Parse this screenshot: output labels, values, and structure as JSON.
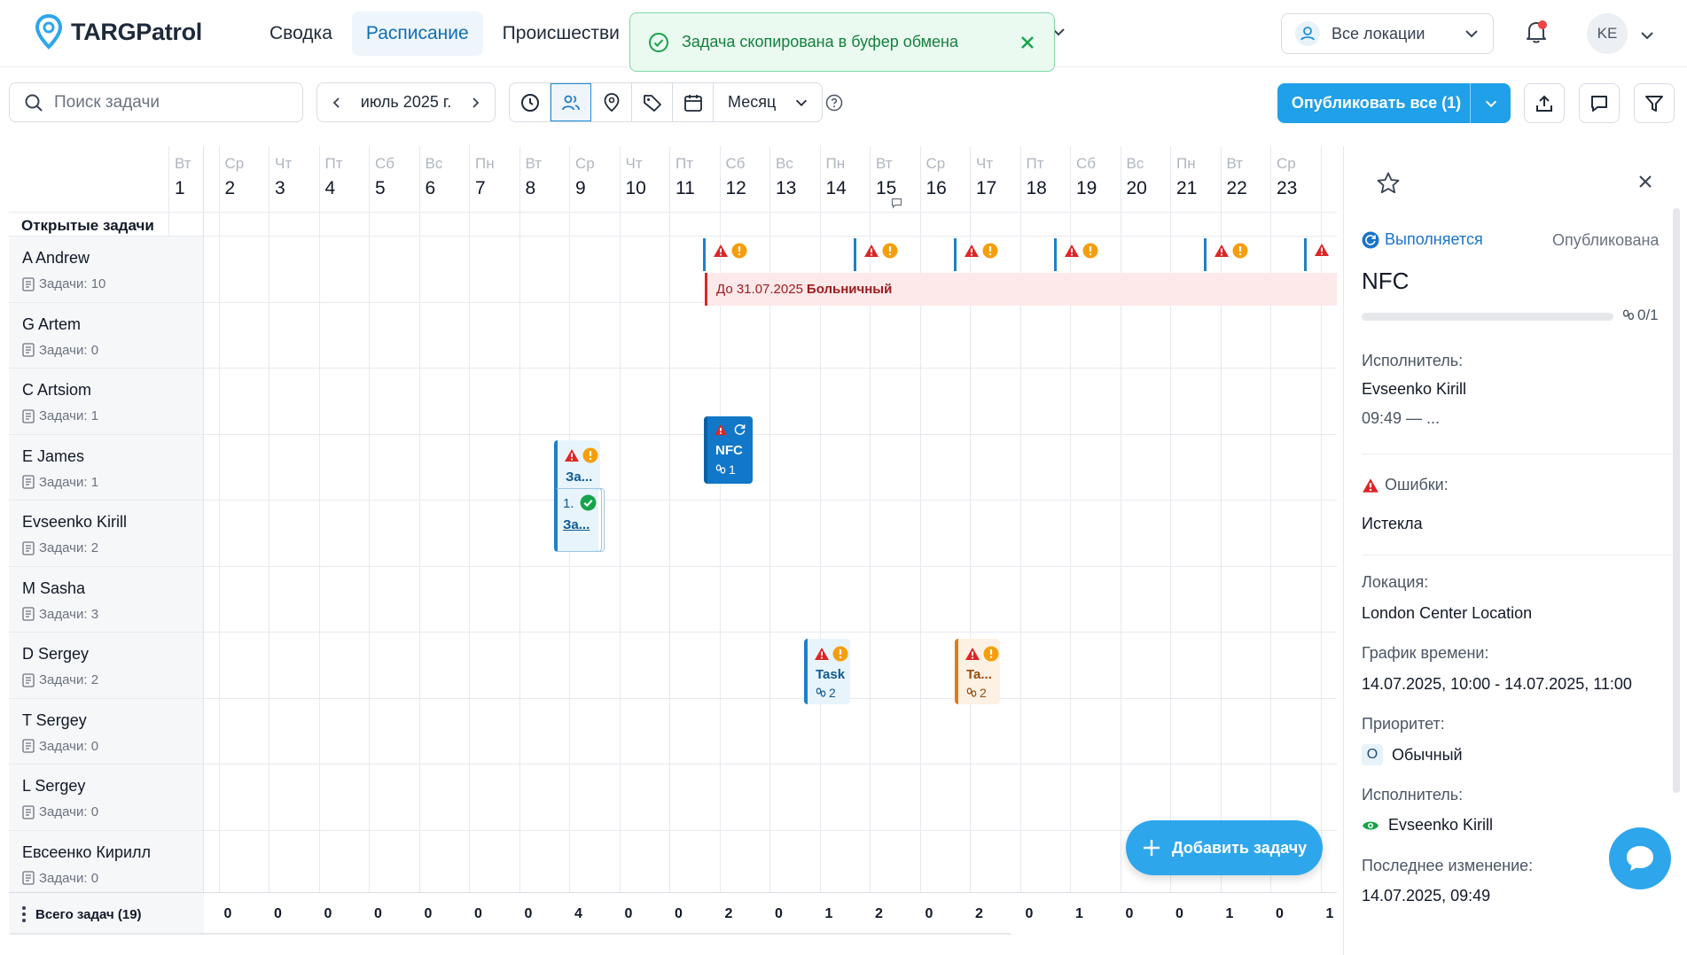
{
  "header": {
    "logo_text": "TARGPatrol",
    "nav": [
      "Сводка",
      "Расписание",
      "Происшестви"
    ],
    "toast_text": "Задача скопирована в буфер обмена",
    "location_select": "Все локации",
    "avatar_initials": "KE"
  },
  "toolbar": {
    "search_placeholder": "Поиск задачи",
    "date_label": "июль 2025 г.",
    "view_mode": "Месяц",
    "publish_label": "Опубликовать все (1)"
  },
  "colors": {
    "accent": "#1fa0e8",
    "danger": "#dc2626",
    "warning": "#f59e0b",
    "success": "#16a34a"
  },
  "schedule": {
    "open_tasks_label": "Открытые задачи",
    "days": [
      {
        "dow": "Вт",
        "num": "1"
      },
      {
        "dow": "Ср",
        "num": "2"
      },
      {
        "dow": "Чт",
        "num": "3"
      },
      {
        "dow": "Пт",
        "num": "4"
      },
      {
        "dow": "Сб",
        "num": "5"
      },
      {
        "dow": "Вс",
        "num": "6"
      },
      {
        "dow": "Пн",
        "num": "7"
      },
      {
        "dow": "Вт",
        "num": "8"
      },
      {
        "dow": "Ср",
        "num": "9"
      },
      {
        "dow": "Чт",
        "num": "10"
      },
      {
        "dow": "Пт",
        "num": "11"
      },
      {
        "dow": "Сб",
        "num": "12"
      },
      {
        "dow": "Вс",
        "num": "13"
      },
      {
        "dow": "Пн",
        "num": "14"
      },
      {
        "dow": "Вт",
        "num": "15"
      },
      {
        "dow": "Ср",
        "num": "16"
      },
      {
        "dow": "Чт",
        "num": "17"
      },
      {
        "dow": "Пт",
        "num": "18"
      },
      {
        "dow": "Сб",
        "num": "19"
      },
      {
        "dow": "Вс",
        "num": "20"
      },
      {
        "dow": "Пн",
        "num": "21"
      },
      {
        "dow": "Вт",
        "num": "22"
      },
      {
        "dow": "Ср",
        "num": "23"
      }
    ],
    "employees": [
      {
        "name": "A Andrew",
        "count": "Задачи: 10"
      },
      {
        "name": "G Artem",
        "count": "Задачи: 0"
      },
      {
        "name": "C Artsiom",
        "count": "Задачи: 1"
      },
      {
        "name": "E James",
        "count": "Задачи: 1"
      },
      {
        "name": "Evseenko Kirill",
        "count": "Задачи: 2"
      },
      {
        "name": "M Sasha",
        "count": "Задачи: 3"
      },
      {
        "name": "D Sergey",
        "count": "Задачи: 2"
      },
      {
        "name": "T Sergey",
        "count": "Задачи: 0"
      },
      {
        "name": "L Sergey",
        "count": "Задачи: 0"
      },
      {
        "name": "Евсеенко Кирилл",
        "count": "Задачи: 0"
      }
    ],
    "sick_leave": {
      "until": "До 31.07.2025",
      "type": "Больничный"
    },
    "cards": {
      "james": {
        "title": "За..."
      },
      "kirill": {
        "title": "NFC",
        "count": "1"
      },
      "sasha": {
        "num": "1.",
        "title": "За..."
      },
      "sergey13": {
        "title": "Task",
        "count": "2"
      },
      "sergey16": {
        "title": "Ta...",
        "count": "2"
      }
    },
    "totals_label": "Всего задач (19)",
    "totals": [
      "0",
      "0",
      "0",
      "0",
      "0",
      "0",
      "0",
      "4",
      "0",
      "0",
      "2",
      "0",
      "1",
      "2",
      "0",
      "2",
      "0",
      "1",
      "0",
      "0",
      "1",
      "0",
      "1"
    ],
    "add_task_label": "Добавить задачу"
  },
  "panel": {
    "status": "Выполняется",
    "published": "Опубликована",
    "title": "NFC",
    "progress_text": "0/1",
    "progress": 0,
    "assignee_label": "Исполнитель:",
    "assignee_name": "Evseenko Kirill",
    "assignee_time": "09:49 — ...",
    "errors_label": "Ошибки:",
    "errors_value": "Истекла",
    "location_label": "Локация:",
    "location_value": "London Center Location",
    "schedule_label": "График времени:",
    "schedule_value": "14.07.2025, 10:00 - 14.07.2025, 11:00",
    "priority_label": "Приоритет:",
    "priority_badge": "О",
    "priority_value": "Обычный",
    "executor_label": "Исполнитель:",
    "executor_value": "Evseenko Kirill",
    "last_change_label": "Последнее изменение:",
    "last_change_value": "14.07.2025, 09:49"
  }
}
